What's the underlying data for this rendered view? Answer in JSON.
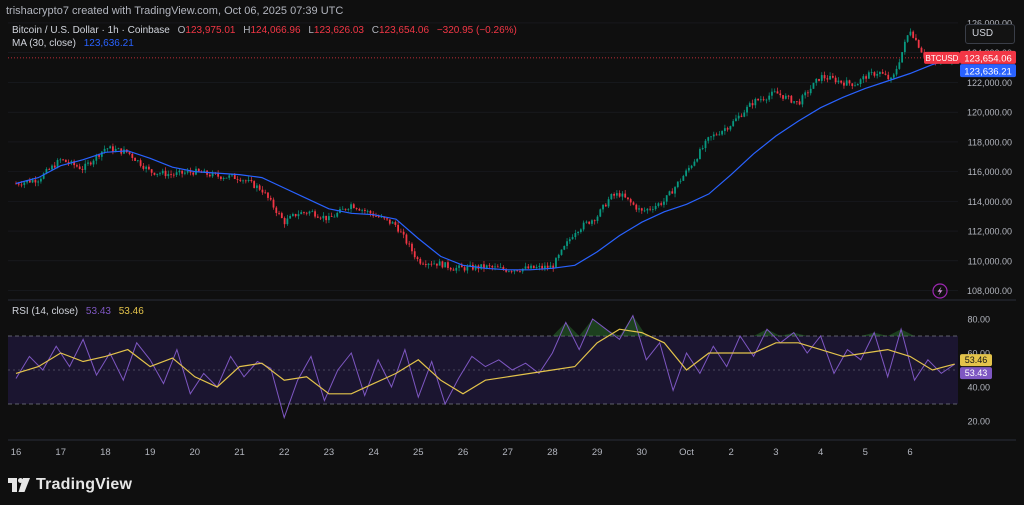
{
  "header": {
    "credit": "trishacrypto7 created with TradingView.com, Oct 06, 2025 07:39 UTC",
    "currency_button": "USD"
  },
  "legend": {
    "symbol": "Bitcoin / U.S. Dollar · 1h · Coinbase",
    "o_label": "O",
    "o_value": "123,975.01",
    "h_label": "H",
    "h_value": "124,066.96",
    "l_label": "L",
    "l_value": "123,626.03",
    "c_label": "C",
    "c_value": "123,654.06",
    "change": "−320.95 (−0.26%)",
    "ma_label": "MA (30, close)",
    "ma_value": "123,636.21",
    "rsi_label": "RSI (14, close)",
    "rsi_value": "53.43",
    "rsi_ma_value": "53.46"
  },
  "brand": {
    "name": "TradingView"
  },
  "colors": {
    "background": "#0f0f0f",
    "up": "#089981",
    "down": "#f23645",
    "ma": "#2962ff",
    "rsi": "#7e57c2",
    "rsi_ma": "#e3c34b",
    "rsi_band": "#1b1530"
  },
  "chart_data": [
    {
      "type": "candlestick",
      "symbol": "BTCUSD",
      "price_axis": [
        "124,000.00",
        "122,000.00",
        "120,000.00",
        "118,000.00",
        "116,000.00",
        "114,000.00",
        "112,000.00",
        "110,000.00",
        "108,000.00"
      ],
      "top_axis_partial": "126,000.00",
      "ylim": [
        107500,
        126200
      ],
      "last_price_tag": "BTCUSD",
      "last_price": 123654.06,
      "last_price_text": "123,654.06",
      "ma_last": 123636.21,
      "ma_last_text": "123,636.21",
      "ma_period": 30,
      "x_labels": [
        "16",
        "17",
        "18",
        "19",
        "20",
        "21",
        "22",
        "23",
        "24",
        "25",
        "26",
        "27",
        "28",
        "29",
        "30",
        "Oct",
        "2",
        "3",
        "4",
        "5",
        "6"
      ],
      "close_path": {
        "x": [
          0,
          0.5,
          1,
          1.5,
          2,
          2.5,
          3,
          3.5,
          4,
          4.5,
          5,
          5.5,
          6,
          6.3,
          6.6,
          7,
          7.5,
          8,
          8.5,
          9,
          9.5,
          9.8,
          10,
          10.5,
          11,
          11.5,
          12,
          12.5,
          13,
          13.3,
          13.5,
          14,
          14.5,
          15,
          15.5,
          16,
          16.5,
          17,
          17.5,
          18,
          18.3,
          18.5,
          18.8,
          19,
          19.3,
          19.6,
          20,
          20.3,
          20.5,
          20.7,
          21
        ],
        "y": [
          115200,
          115500,
          116800,
          116200,
          117600,
          117300,
          116000,
          115800,
          116000,
          115700,
          115600,
          114800,
          112600,
          113200,
          113300,
          112800,
          113800,
          113100,
          112400,
          110000,
          109800,
          109500,
          109500,
          109600,
          109400,
          109500,
          109600,
          112000,
          113000,
          114300,
          114500,
          113300,
          114000,
          116000,
          118200,
          119200,
          120700,
          121300,
          120600,
          122400,
          122200,
          122000,
          121900,
          122400,
          122700,
          122100,
          125600,
          123900,
          123300,
          123400,
          123654
        ]
      },
      "ma_path": {
        "x": [
          0,
          0.5,
          1,
          1.5,
          2,
          2.5,
          3,
          3.5,
          4,
          4.5,
          5,
          5.5,
          6,
          6.5,
          7,
          7.5,
          8,
          8.5,
          9,
          9.5,
          10,
          10.5,
          11,
          11.5,
          12,
          12.5,
          13,
          13.5,
          14,
          14.5,
          15,
          15.5,
          16,
          16.5,
          17,
          17.5,
          18,
          18.5,
          19,
          19.5,
          20,
          20.5,
          21
        ],
        "y": [
          115200,
          115600,
          116400,
          116800,
          117300,
          117400,
          116900,
          116300,
          116000,
          115900,
          115800,
          115600,
          114900,
          114200,
          113500,
          113200,
          113100,
          112800,
          111500,
          110300,
          109700,
          109500,
          109400,
          109400,
          109500,
          109700,
          110600,
          111700,
          112600,
          113300,
          113800,
          114500,
          115800,
          117200,
          118400,
          119400,
          120300,
          121000,
          121600,
          122100,
          122600,
          123200,
          123636
        ]
      }
    },
    {
      "type": "line",
      "indicator": "RSI (14, close)",
      "y_axis": [
        "80.00",
        "60.00",
        "40.00",
        "20.00"
      ],
      "ylim": [
        10,
        90
      ],
      "upper_band": 70,
      "middle_band": 50,
      "lower_band": 30,
      "series": [
        {
          "name": "RSI",
          "x": [
            0,
            0.3,
            0.6,
            0.9,
            1.2,
            1.5,
            1.8,
            2.1,
            2.4,
            2.7,
            3,
            3.3,
            3.6,
            3.9,
            4.2,
            4.5,
            4.8,
            5.1,
            5.4,
            5.7,
            6,
            6.3,
            6.6,
            6.9,
            7.2,
            7.5,
            7.8,
            8.1,
            8.4,
            8.7,
            9,
            9.3,
            9.6,
            9.9,
            10.2,
            10.5,
            10.8,
            11.1,
            11.4,
            11.7,
            12,
            12.3,
            12.6,
            12.9,
            13.2,
            13.5,
            13.8,
            14.1,
            14.4,
            14.7,
            15,
            15.3,
            15.6,
            15.9,
            16.2,
            16.5,
            16.8,
            17.1,
            17.4,
            17.7,
            18,
            18.3,
            18.6,
            18.9,
            19.2,
            19.5,
            19.8,
            20.1,
            20.4,
            20.7,
            21
          ],
          "y": [
            45,
            58,
            50,
            64,
            52,
            68,
            47,
            60,
            44,
            66,
            56,
            42,
            62,
            36,
            48,
            40,
            58,
            46,
            55,
            51,
            22,
            44,
            58,
            32,
            50,
            60,
            35,
            56,
            40,
            62,
            34,
            55,
            30,
            45,
            58,
            52,
            56,
            50,
            54,
            48,
            60,
            78,
            62,
            80,
            74,
            68,
            82,
            56,
            66,
            38,
            60,
            48,
            64,
            52,
            70,
            58,
            74,
            66,
            72,
            60,
            70,
            48,
            62,
            56,
            72,
            46,
            74,
            44,
            56,
            48,
            53.43
          ]
        },
        {
          "name": "RSI-based MA",
          "x": [
            0,
            0.5,
            1,
            1.5,
            2,
            2.5,
            3,
            3.5,
            4,
            4.5,
            5,
            5.5,
            6,
            6.5,
            7,
            7.5,
            8,
            8.5,
            9,
            9.5,
            10,
            10.5,
            11,
            11.5,
            12,
            12.5,
            13,
            13.5,
            14,
            14.5,
            15,
            15.5,
            16,
            16.5,
            17,
            17.5,
            18,
            18.5,
            19,
            19.5,
            20,
            20.5,
            21
          ],
          "y": [
            48,
            52,
            60,
            55,
            58,
            62,
            52,
            57,
            46,
            40,
            52,
            54,
            44,
            46,
            36,
            36,
            42,
            48,
            56,
            44,
            36,
            44,
            46,
            48,
            50,
            52,
            66,
            74,
            72,
            66,
            50,
            60,
            60,
            60,
            66,
            66,
            62,
            58,
            60,
            62,
            58,
            50,
            53.46
          ]
        }
      ],
      "last_values": [
        53.46,
        53.43
      ],
      "last_value_texts": [
        "53.46",
        "53.43"
      ]
    }
  ]
}
